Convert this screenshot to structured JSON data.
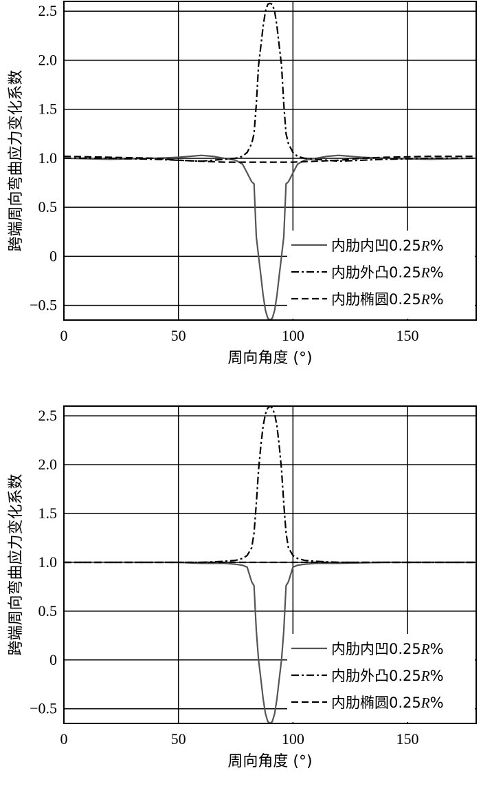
{
  "chart_data": [
    {
      "type": "line",
      "xlabel": "周向角度 (°)",
      "ylabel": "跨端周向弯曲应力变化系数",
      "xlim": [
        0,
        180
      ],
      "ylim": [
        -0.65,
        2.6
      ],
      "xticks": [
        0,
        50,
        100,
        150
      ],
      "yticks": [
        2.5,
        2.0,
        1.5,
        1.0,
        0.5,
        0,
        -0.5
      ],
      "ytick_labels": [
        "2.5",
        "2.0",
        "1.5",
        "1.0",
        "0.5",
        "0",
        "−0.5"
      ],
      "grid": true,
      "legend_position": "bottom-right",
      "series": [
        {
          "name": "内肋内凹0.25R%",
          "name_main": "内肋内凹0.25",
          "name_italic": "R",
          "name_suffix": "%",
          "style": "solid",
          "color": "#555555",
          "x": [
            0,
            20,
            40,
            50,
            55,
            60,
            65,
            70,
            75,
            78,
            80,
            82,
            83,
            84,
            85,
            86,
            87,
            88,
            89,
            90,
            91,
            92,
            93,
            94,
            95,
            96,
            97,
            98,
            100,
            102,
            105,
            110,
            115,
            120,
            125,
            130,
            140,
            160,
            180
          ],
          "y": [
            1.0,
            0.99,
            1.0,
            1.01,
            1.02,
            1.03,
            1.02,
            1.0,
            0.98,
            0.94,
            0.85,
            0.76,
            0.74,
            0.2,
            0.0,
            -0.2,
            -0.4,
            -0.55,
            -0.63,
            -0.65,
            -0.63,
            -0.55,
            -0.4,
            -0.2,
            0.0,
            0.2,
            0.74,
            0.76,
            0.85,
            0.94,
            0.98,
            1.0,
            1.02,
            1.03,
            1.02,
            1.01,
            1.0,
            0.99,
            1.0
          ]
        },
        {
          "name": "内肋外凸0.25R%",
          "name_main": "内肋外凸0.25",
          "name_italic": "R",
          "name_suffix": "%",
          "style": "dashdot",
          "color": "#000000",
          "x": [
            0,
            20,
            40,
            50,
            60,
            70,
            75,
            78,
            80,
            82,
            83,
            84,
            85,
            86,
            87,
            88,
            89,
            90,
            91,
            92,
            93,
            94,
            95,
            96,
            97,
            98,
            100,
            102,
            105,
            110,
            120,
            130,
            140,
            160,
            180
          ],
          "y": [
            1.0,
            1.0,
            0.99,
            0.98,
            0.97,
            0.99,
            1.0,
            1.02,
            1.06,
            1.15,
            1.25,
            1.55,
            1.95,
            2.15,
            2.35,
            2.5,
            2.57,
            2.58,
            2.57,
            2.5,
            2.35,
            2.15,
            1.95,
            1.55,
            1.25,
            1.15,
            1.06,
            1.02,
            1.0,
            0.99,
            0.97,
            0.98,
            0.99,
            1.0,
            1.0
          ]
        },
        {
          "name": "内肋椭圆0.25R%",
          "name_main": "内肋椭圆0.25",
          "name_italic": "R",
          "name_suffix": "%",
          "style": "dashed",
          "color": "#000000",
          "x": [
            0,
            20,
            40,
            50,
            60,
            70,
            80,
            90,
            100,
            110,
            120,
            130,
            140,
            160,
            180
          ],
          "y": [
            1.02,
            1.01,
            1.0,
            0.98,
            0.97,
            0.96,
            0.96,
            0.96,
            0.96,
            0.97,
            0.98,
            1.0,
            1.01,
            1.02,
            1.02
          ]
        }
      ]
    },
    {
      "type": "line",
      "xlabel": "周向角度 (°)",
      "ylabel": "跨端周向弯曲应力变化系数",
      "xlim": [
        0,
        180
      ],
      "ylim": [
        -0.65,
        2.6
      ],
      "xticks": [
        0,
        50,
        100,
        150
      ],
      "yticks": [
        2.5,
        2.0,
        1.5,
        1.0,
        0.5,
        0,
        -0.5
      ],
      "ytick_labels": [
        "2.5",
        "2.0",
        "1.5",
        "1.0",
        "0.5",
        "0",
        "−0.5"
      ],
      "grid": true,
      "legend_position": "bottom-right",
      "series": [
        {
          "name": "内肋内凹0.25R%",
          "name_main": "内肋内凹0.25",
          "name_italic": "R",
          "name_suffix": "%",
          "style": "solid",
          "color": "#555555",
          "x": [
            0,
            20,
            40,
            50,
            60,
            70,
            75,
            78,
            80,
            82,
            83,
            84,
            85,
            86,
            87,
            88,
            89,
            90,
            91,
            92,
            93,
            94,
            95,
            96,
            97,
            98,
            100,
            102,
            105,
            110,
            120,
            140,
            160,
            180
          ],
          "y": [
            1.0,
            1.0,
            1.0,
            1.0,
            0.99,
            0.99,
            0.98,
            0.97,
            0.95,
            0.8,
            0.76,
            0.3,
            0.0,
            -0.2,
            -0.4,
            -0.55,
            -0.63,
            -0.65,
            -0.63,
            -0.55,
            -0.4,
            -0.2,
            0.0,
            0.3,
            0.76,
            0.8,
            0.95,
            0.97,
            0.98,
            0.99,
            0.99,
            1.0,
            1.0,
            1.0
          ]
        },
        {
          "name": "内肋外凸0.25R%",
          "name_main": "内肋外凸0.25",
          "name_italic": "R",
          "name_suffix": "%",
          "style": "dashdot",
          "color": "#000000",
          "x": [
            0,
            20,
            40,
            50,
            60,
            70,
            75,
            78,
            80,
            82,
            83,
            84,
            85,
            86,
            87,
            88,
            89,
            90,
            91,
            92,
            93,
            94,
            95,
            96,
            97,
            98,
            100,
            102,
            105,
            110,
            120,
            140,
            160,
            180
          ],
          "y": [
            1.0,
            1.0,
            1.0,
            1.0,
            1.0,
            1.01,
            1.02,
            1.04,
            1.07,
            1.15,
            1.3,
            1.6,
            1.95,
            2.2,
            2.4,
            2.52,
            2.58,
            2.6,
            2.58,
            2.52,
            2.4,
            2.2,
            1.95,
            1.6,
            1.3,
            1.15,
            1.07,
            1.04,
            1.02,
            1.01,
            1.0,
            1.0,
            1.0,
            1.0
          ]
        },
        {
          "name": "内肋椭圆0.25R%",
          "name_main": "内肋椭圆0.25",
          "name_italic": "R",
          "name_suffix": "%",
          "style": "dashed",
          "color": "#000000",
          "x": [
            0,
            50,
            100,
            150,
            180
          ],
          "y": [
            1.0,
            1.0,
            1.0,
            1.0,
            1.0
          ]
        }
      ]
    }
  ]
}
